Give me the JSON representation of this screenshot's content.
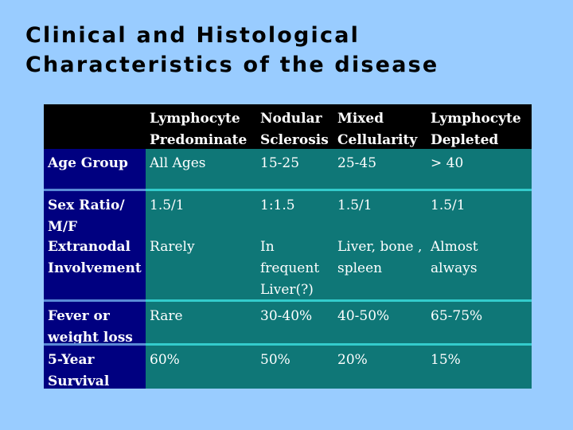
{
  "title": {
    "line1": "Clinical and Histological",
    "line2": "Characteristics of the disease"
  },
  "table": {
    "header": [
      "",
      "Lymphocyte\nPredominate",
      "Nodular\nSclerosis",
      "Mixed\nCellularity",
      "Lymphocyte\nDepleted"
    ],
    "rows": [
      {
        "label": "Age Group",
        "cells": [
          "All Ages",
          "15-25",
          "25-45",
          "> 40"
        ]
      },
      {
        "label": "Sex Ratio/\nM/F",
        "cells": [
          "1.5/1",
          "1:1.5",
          "1.5/1",
          "1.5/1"
        ],
        "label2": "Extranodal\nInvolvement",
        "cells2": [
          "Rarely",
          "In\nfrequent\nLiver(?)",
          "Liver, bone ,\nspleen",
          "Almost\nalways"
        ]
      },
      {
        "label": "Fever or\nweight loss",
        "cells": [
          "Rare",
          "30-40%",
          "40-50%",
          "65-75%"
        ]
      },
      {
        "label": "5-Year\nSurvival",
        "cells": [
          "60%",
          "50%",
          "20%",
          "15%"
        ]
      }
    ]
  }
}
